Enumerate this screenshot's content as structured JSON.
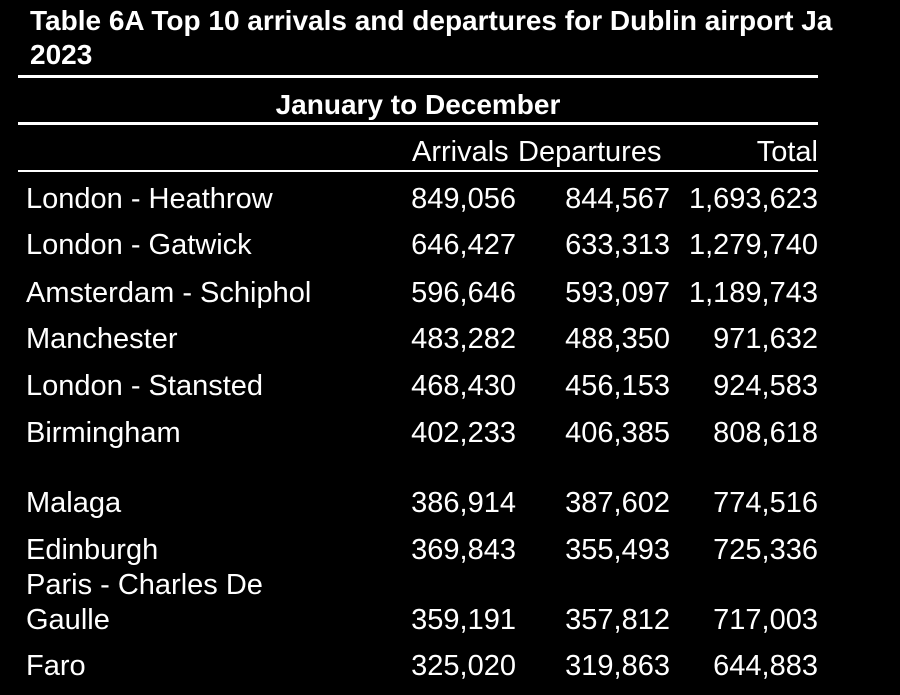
{
  "title": {
    "line1": "Table 6A  Top 10 arrivals and departures for Dublin airport Ja",
    "line2": "2023"
  },
  "period": "January to December",
  "columns": {
    "arrivals": "Arrivals",
    "departures": "Departures",
    "total": "Total"
  },
  "rows": [
    {
      "airport": "London - Heathrow",
      "arrivals": "849,056",
      "departures": "844,567",
      "total": "1,693,623"
    },
    {
      "airport": "London - Gatwick",
      "arrivals": "646,427",
      "departures": "633,313",
      "total": "1,279,740"
    },
    {
      "airport": "Amsterdam - Schiphol",
      "arrivals": "596,646",
      "departures": "593,097",
      "total": "1,189,743"
    },
    {
      "airport": "Manchester",
      "arrivals": "483,282",
      "departures": "488,350",
      "total": "971,632"
    },
    {
      "airport": "London - Stansted",
      "arrivals": "468,430",
      "departures": "456,153",
      "total": "924,583"
    },
    {
      "airport": "Birmingham",
      "arrivals": "402,233",
      "departures": "406,385",
      "total": "808,618"
    },
    {
      "airport": "Malaga",
      "arrivals": "386,914",
      "departures": "387,602",
      "total": "774,516"
    },
    {
      "airport": "Edinburgh",
      "arrivals": "369,843",
      "departures": "355,493",
      "total": "725,336"
    },
    {
      "airport_line1": "Paris - Charles De",
      "airport_line2": "Gaulle",
      "arrivals": "359,191",
      "departures": "357,812",
      "total": "717,003"
    },
    {
      "airport": "Faro",
      "arrivals": "325,020",
      "departures": "319,863",
      "total": "644,883"
    }
  ]
}
